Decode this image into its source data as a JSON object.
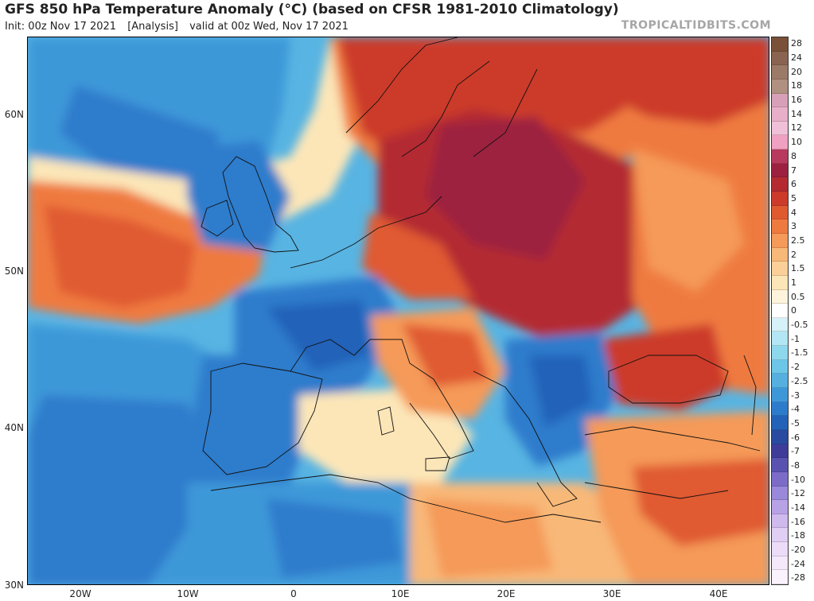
{
  "header": {
    "title": "GFS 850 hPa Temperature Anomaly (°C) (based on CFSR 1981-2010 Climatology)",
    "init": "Init: 00z Nov 17 2021",
    "analysis": "[Analysis]",
    "valid": "valid at 00z Wed, Nov 17 2021",
    "watermark": "TROPICALTIDBITS.COM"
  },
  "map": {
    "region": "Europe / North Atlantic / Mediterranean",
    "lat_labels": [
      "60N",
      "50N",
      "40N",
      "30N"
    ],
    "lon_labels": [
      "20W",
      "10W",
      "0",
      "10E",
      "20E",
      "30E",
      "40E"
    ]
  },
  "legend": {
    "labels": [
      "28",
      "24",
      "20",
      "18",
      "16",
      "14",
      "12",
      "10",
      "8",
      "7",
      "6",
      "5",
      "4",
      "3",
      "2.5",
      "2",
      "1.5",
      "1",
      "0.5",
      "0",
      "-0.5",
      "-1",
      "-1.5",
      "-2",
      "-2.5",
      "-3",
      "-4",
      "-5",
      "-6",
      "-7",
      "-8",
      "-10",
      "-12",
      "-14",
      "-16",
      "-18",
      "-20",
      "-24",
      "-28"
    ],
    "colors": [
      "#7a5038",
      "#8a6450",
      "#9c7a68",
      "#b09080",
      "#d8a0b8",
      "#e8b0c8",
      "#f0c0d8",
      "#f0a0c0",
      "#b83a5c",
      "#9c2040",
      "#b42a30",
      "#cc3a2a",
      "#e05a30",
      "#ef7a40",
      "#f59a58",
      "#f8b878",
      "#fad098",
      "#fce6b8",
      "#fef4dc",
      "#ffffff",
      "#d6f1f8",
      "#b2e6f4",
      "#8ed8ee",
      "#6cc6e8",
      "#55b0e0",
      "#3e98d8",
      "#2d7ccc",
      "#2462b8",
      "#2a4aa0",
      "#3e3c98",
      "#5a52b0",
      "#7c6cc8",
      "#9a88da",
      "#b8a2e6",
      "#cfbaee",
      "#e0cef4",
      "#ecdcf8",
      "#f4e8fa",
      "#faf2fc"
    ]
  }
}
